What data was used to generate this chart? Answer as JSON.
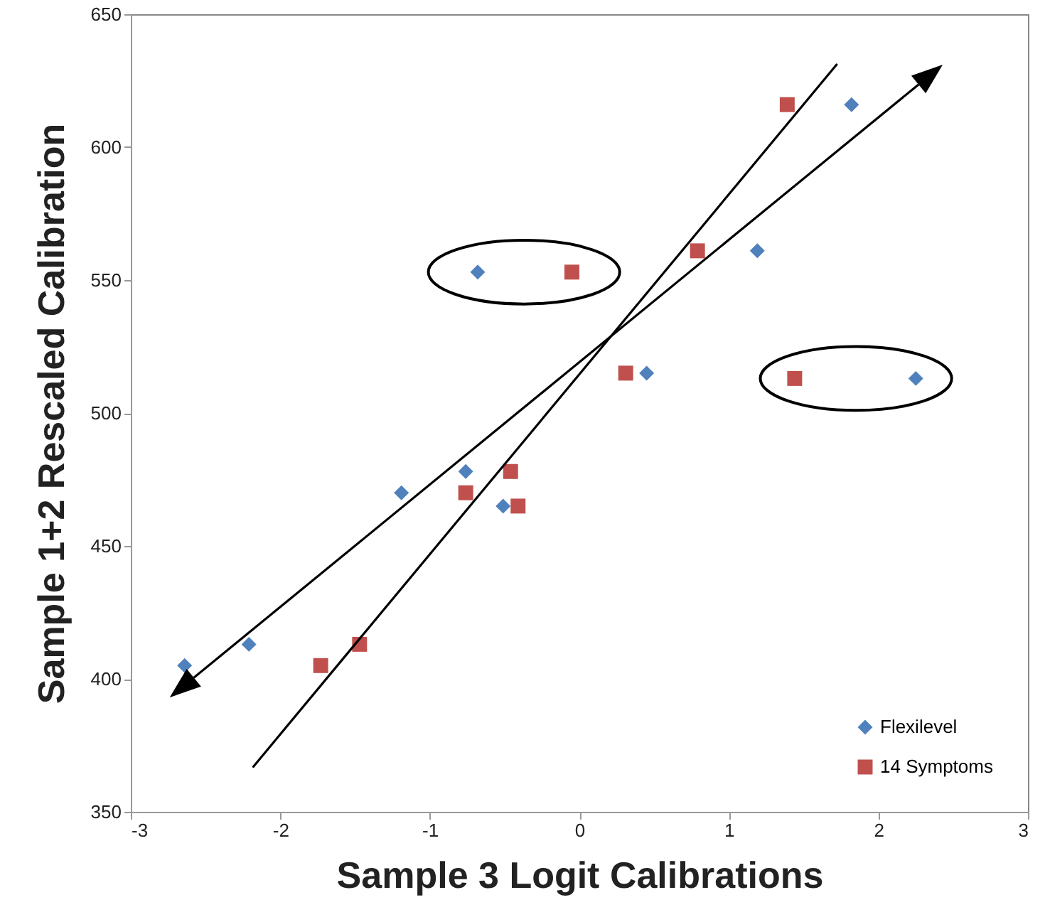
{
  "chart_data": {
    "type": "scatter",
    "xlabel": "Sample 3 Logit Calibrations",
    "ylabel": "Sample 1+2 Rescaled Calibration",
    "xlim": [
      -3,
      3
    ],
    "xticks": [
      -3,
      -2,
      -1,
      0,
      1,
      2,
      3
    ],
    "ylim": [
      350,
      650
    ],
    "yticks": [
      350,
      400,
      450,
      500,
      550,
      600,
      650
    ],
    "grid": false,
    "legend": "bottom right",
    "series": [
      {
        "name": "Flexilevel",
        "color": "#4f81bd",
        "marker": "diamond",
        "x": [
          -2.64,
          -2.21,
          -1.19,
          -0.76,
          -0.51,
          -0.68,
          0.45,
          1.19,
          1.82,
          2.25
        ],
        "values": [
          405,
          413,
          470,
          478,
          465,
          553,
          515,
          561,
          616,
          513
        ]
      },
      {
        "name": "14 Symptoms",
        "color": "#c0504d",
        "marker": "square",
        "x": [
          -1.73,
          -1.47,
          -0.76,
          -0.46,
          -0.41,
          -0.05,
          0.31,
          0.79,
          1.39,
          1.44
        ],
        "values": [
          405,
          413,
          470,
          478,
          465,
          553,
          515,
          561,
          616,
          513
        ]
      },
      {
        "type": "line",
        "color": "#000000",
        "x": [
          -2.18,
          1.72
        ],
        "values": [
          367,
          631
        ]
      }
    ]
  }
}
